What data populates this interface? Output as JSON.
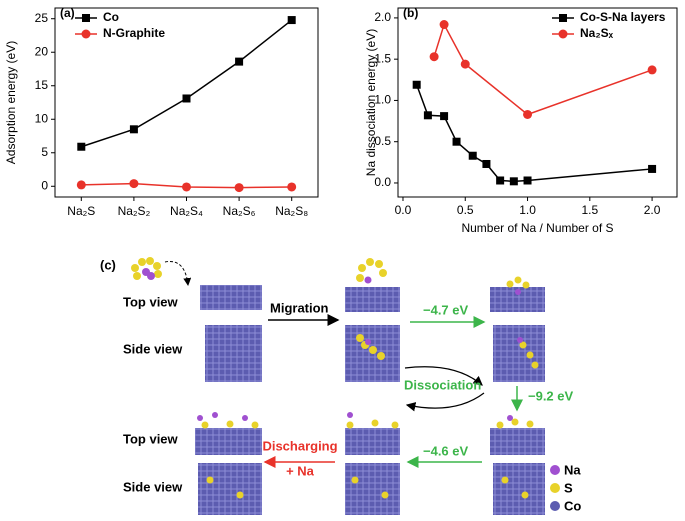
{
  "chart_data": [
    {
      "type": "line",
      "panel_label": "(a)",
      "y_label": "Adsorption energy (eV)",
      "categories": [
        "Na₂S",
        "Na₂S₂",
        "Na₂S₄",
        "Na₂S₆",
        "Na₂S₈"
      ],
      "series": [
        {
          "name": "Co",
          "color": "#000000",
          "marker": "square",
          "values": [
            5.9,
            8.5,
            13.1,
            18.6,
            24.8
          ]
        },
        {
          "name": "N-Graphite",
          "color": "#e8322a",
          "marker": "circle",
          "values": [
            0.2,
            0.4,
            -0.1,
            -0.2,
            -0.1
          ]
        }
      ],
      "ylim": [
        -1.6,
        26.6
      ],
      "yticks": [
        0,
        5,
        10,
        15,
        20,
        25
      ],
      "legend": "upper left"
    },
    {
      "type": "line",
      "panel_label": "(b)",
      "x_label": "Number of Na / Number of S",
      "y_label": "Na dissociation energy (eV)",
      "series": [
        {
          "name": "Co-S-Na layers",
          "color": "#000000",
          "marker": "square",
          "x": [
            0.11,
            0.2,
            0.33,
            0.43,
            0.56,
            0.67,
            0.78,
            0.89,
            1.0,
            2.0
          ],
          "values": [
            1.19,
            0.82,
            0.81,
            0.5,
            0.33,
            0.23,
            0.03,
            0.02,
            0.03,
            0.17
          ]
        },
        {
          "name": "Na₂Sₓ",
          "color": "#e8322a",
          "marker": "circle",
          "x": [
            0.25,
            0.33,
            0.5,
            1.0,
            2.0
          ],
          "values": [
            1.53,
            1.92,
            1.44,
            0.83,
            1.37
          ]
        }
      ],
      "xlim": [
        -0.04,
        2.2
      ],
      "xticks": [
        {
          "value": 0,
          "label": "0.0"
        },
        {
          "value": 0.5,
          "label": "0.5"
        },
        {
          "value": 1,
          "label": "1.0"
        },
        {
          "value": 1.5,
          "label": "1.5"
        },
        {
          "value": 2,
          "label": "2.0"
        }
      ],
      "ylim": [
        -0.17,
        2.12
      ],
      "yticks": [
        {
          "value": 0,
          "label": "0.0"
        },
        {
          "value": 0.5,
          "label": "0.5"
        },
        {
          "value": 1,
          "label": "1.0"
        },
        {
          "value": 1.5,
          "label": "1.5"
        },
        {
          "value": 2,
          "label": "2.0"
        }
      ],
      "legend": "upper right"
    }
  ],
  "diagram": {
    "panel_label": "(c)",
    "top_view_1": "Top view",
    "side_view_1": "Side view",
    "migration": "Migration",
    "step_1": "−4.7 eV",
    "dissociation": "Dissociation",
    "step_2": "−9.2 eV",
    "step_3": "−4.6 eV",
    "discharging": "Discharging",
    "plus_na": "+ Na",
    "top_view_2": "Top view",
    "side_view_2": "Side view",
    "legend_na": "Na",
    "legend_s": "S",
    "legend_co": "Co"
  }
}
